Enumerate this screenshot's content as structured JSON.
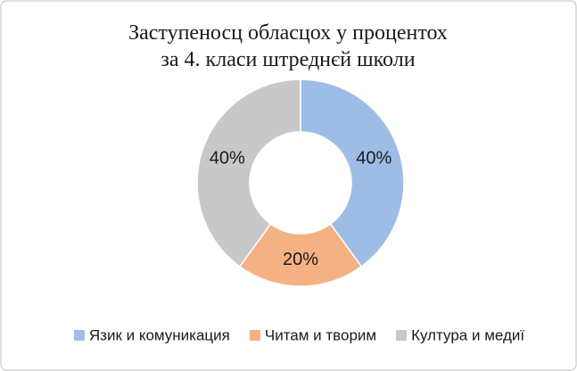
{
  "chart_data": {
    "type": "donut",
    "title": [
      "Заступеносц обласцох у процентох",
      "за 4. класи штреднєй школи"
    ],
    "categories": [
      "Язик и комуникация",
      "Читам и творим",
      "Култура и медиї"
    ],
    "values": [
      40,
      20,
      40
    ],
    "value_labels": [
      "40%",
      "20%",
      "40%"
    ],
    "colors": [
      "#9dbde6",
      "#f4b183",
      "#c8c8c8"
    ],
    "legend": "bottom"
  }
}
